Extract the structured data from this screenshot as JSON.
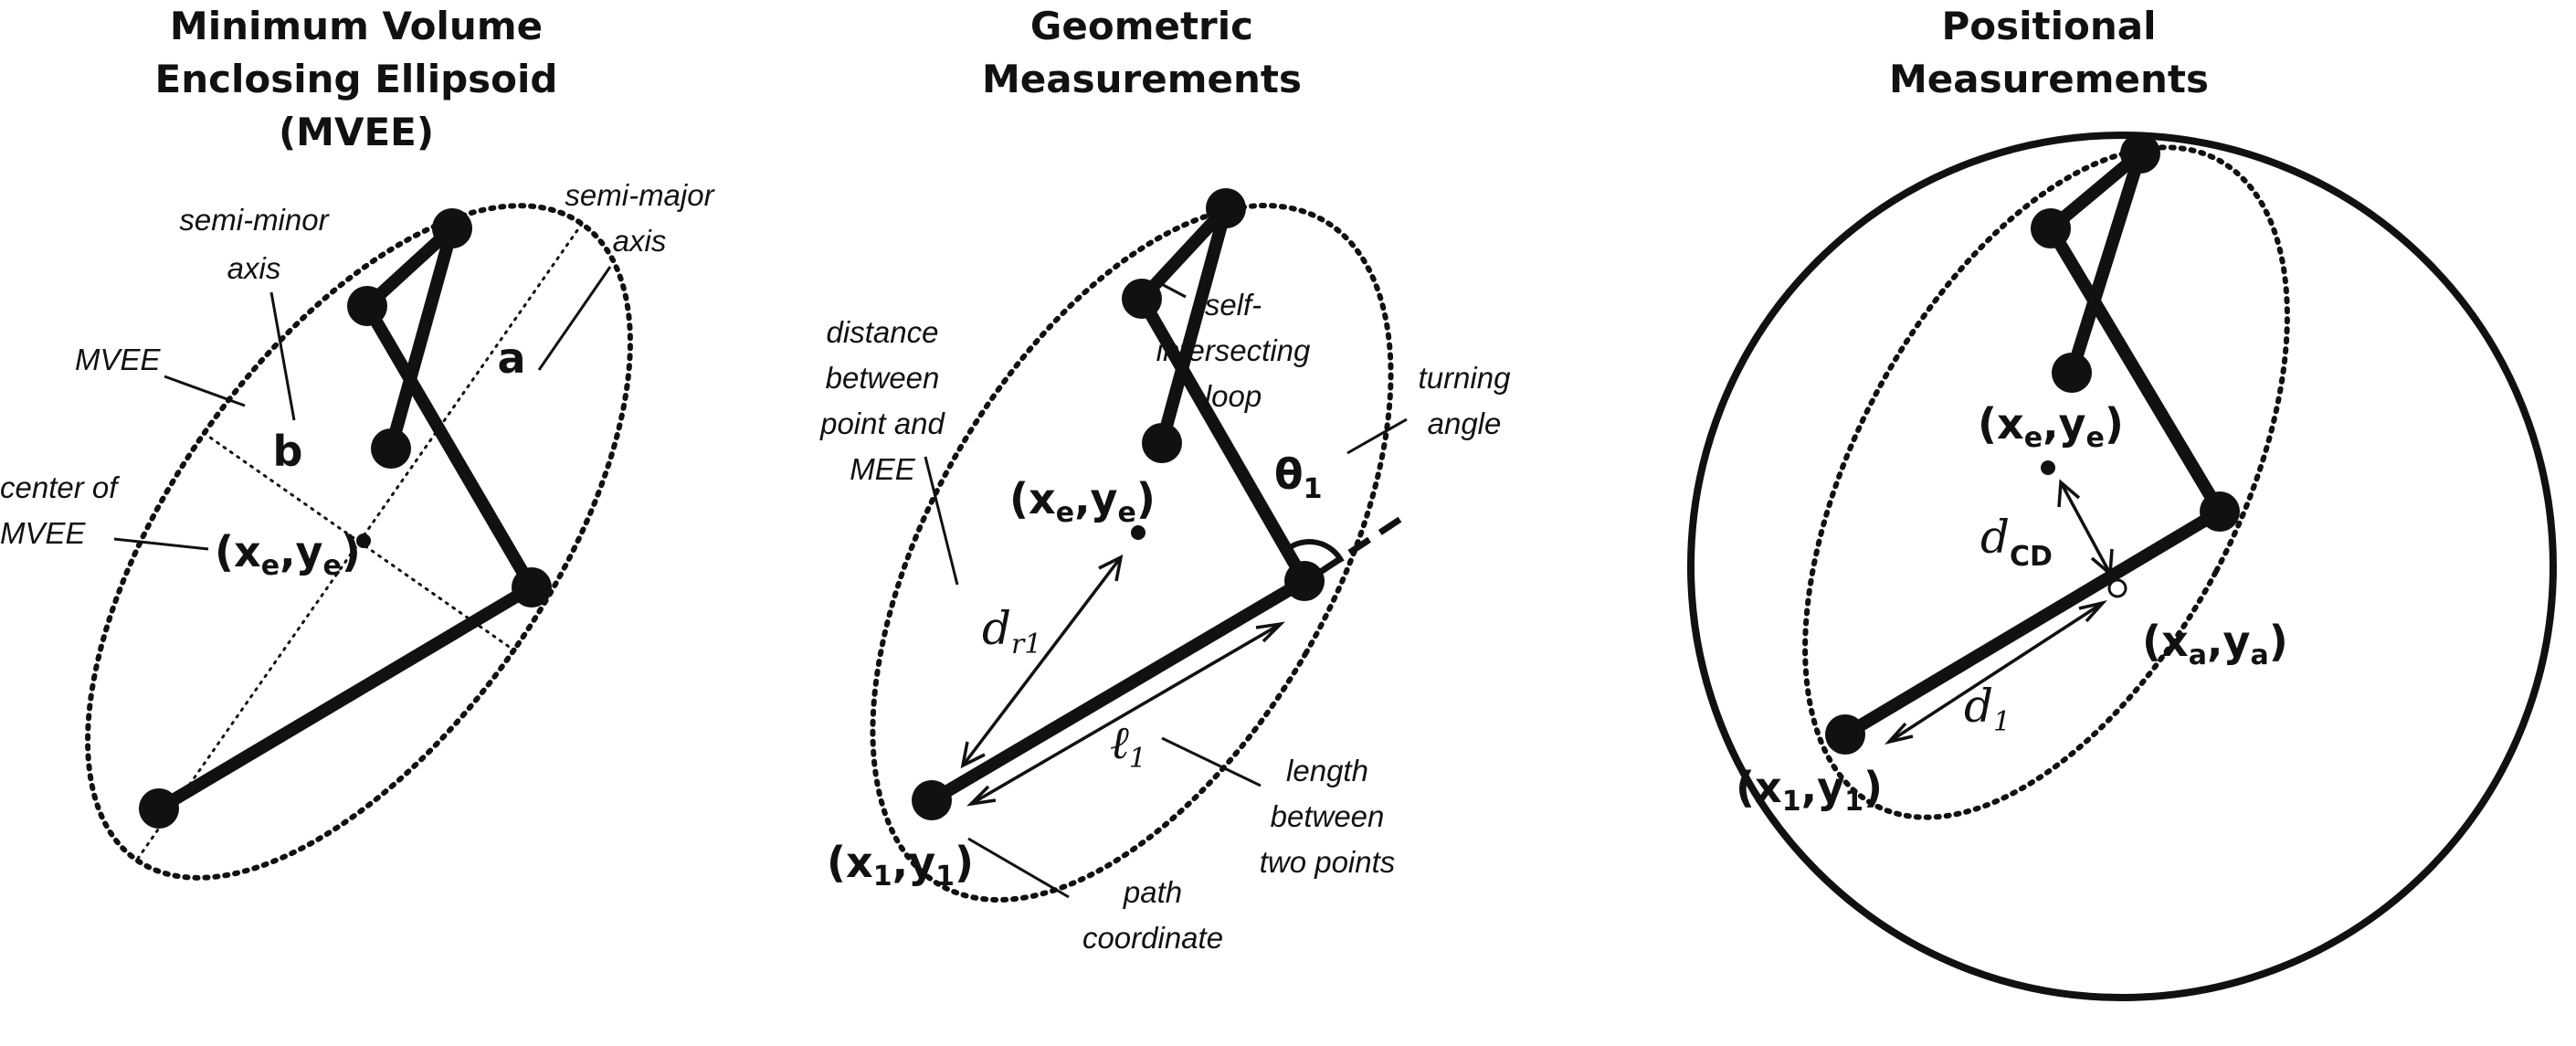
{
  "panels": [
    {
      "title_lines": [
        "Minimum Volume",
        "Enclosing Ellipsoid",
        "(MVEE)"
      ],
      "labels": {
        "semi_minor": [
          "semi-minor",
          "axis"
        ],
        "semi_major": [
          "semi-major",
          "axis"
        ],
        "mvee": "MVEE",
        "center": [
          "center of",
          "MVEE"
        ],
        "a": "a",
        "b": "b"
      },
      "center_point": {
        "x": "x",
        "xs": "e",
        "y": "y",
        "ys": "e"
      }
    },
    {
      "title_lines": [
        "Geometric",
        "Measurements"
      ],
      "labels": {
        "distance": [
          "distance",
          "between",
          "point and",
          "MEE"
        ],
        "loop": [
          "self-",
          "intersecting",
          "loop"
        ],
        "turning": [
          "turning",
          "angle"
        ],
        "length": [
          "length",
          "between",
          "two points"
        ],
        "path": [
          "path",
          "coordinate"
        ],
        "theta": "θ",
        "theta_sub": "1",
        "dr": "d",
        "dr_sub": "r1",
        "ell": "ℓ",
        "ell_sub": "1"
      },
      "center_point": {
        "x": "x",
        "xs": "e",
        "y": "y",
        "ys": "e"
      },
      "path_point": {
        "x": "x",
        "xs": "1",
        "y": "y",
        "ys": "1"
      }
    },
    {
      "title_lines": [
        "Positional",
        "Measurements"
      ],
      "labels": {
        "dcd": "d",
        "dcd_sub": "CD",
        "d1": "d",
        "d1_sub": "1"
      },
      "center_point": {
        "x": "x",
        "xs": "e",
        "y": "y",
        "ys": "e"
      },
      "anchor_point": {
        "x": "x",
        "xs": "a",
        "y": "y",
        "ys": "a"
      },
      "path_point": {
        "x": "x",
        "xs": "1",
        "y": "y",
        "ys": "1"
      }
    }
  ]
}
